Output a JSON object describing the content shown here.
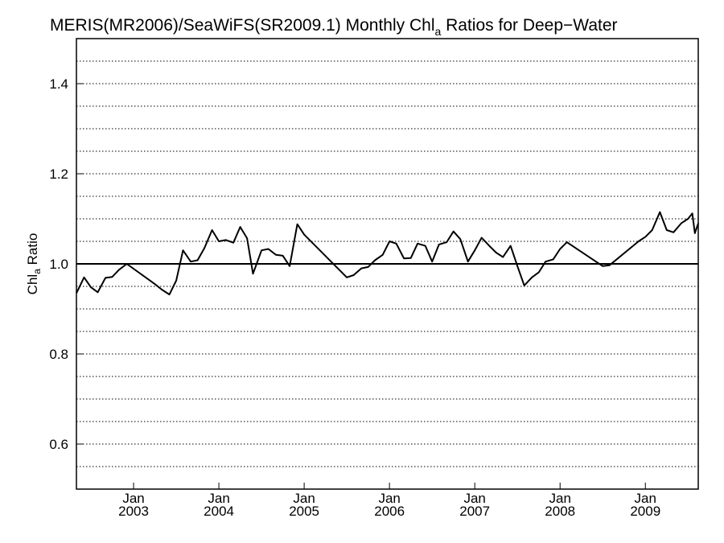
{
  "chart_data": {
    "type": "line",
    "title": {
      "prefix": "MERIS(MR2006)/SeaWiFS(SR2009.1) Monthly Chl",
      "subscript": "a",
      "suffix": " Ratios for Deep−Water"
    },
    "ylabel": {
      "main": "Chl",
      "subscript": "a",
      "suffix": " Ratio"
    },
    "xlim": [
      2002.33,
      2009.62
    ],
    "ylim": [
      0.5,
      1.5
    ],
    "y_ticks": [
      {
        "value": 0.6,
        "label": "0.6"
      },
      {
        "value": 0.8,
        "label": "0.8"
      },
      {
        "value": 1.0,
        "label": "1.0"
      },
      {
        "value": 1.2,
        "label": "1.2"
      },
      {
        "value": 1.4,
        "label": "1.4"
      }
    ],
    "y_gridlines": [
      0.55,
      0.6,
      0.65,
      0.7,
      0.75,
      0.8,
      0.85,
      0.9,
      0.95,
      1.05,
      1.1,
      1.15,
      1.2,
      1.25,
      1.3,
      1.35,
      1.4,
      1.45
    ],
    "grid": "dotted horizontal",
    "reference_line": 1.0,
    "x_ticks": [
      {
        "value": 2003.0,
        "month": "Jan",
        "year": "2003"
      },
      {
        "value": 2004.0,
        "month": "Jan",
        "year": "2004"
      },
      {
        "value": 2005.0,
        "month": "Jan",
        "year": "2005"
      },
      {
        "value": 2006.0,
        "month": "Jan",
        "year": "2006"
      },
      {
        "value": 2007.0,
        "month": "Jan",
        "year": "2007"
      },
      {
        "value": 2008.0,
        "month": "Jan",
        "year": "2008"
      },
      {
        "value": 2009.0,
        "month": "Jan",
        "year": "2009"
      }
    ],
    "series": [
      {
        "color": "#000000",
        "points": [
          [
            2002.33,
            0.935
          ],
          [
            2002.42,
            0.97
          ],
          [
            2002.5,
            0.948
          ],
          [
            2002.58,
            0.937
          ],
          [
            2002.67,
            0.969
          ],
          [
            2002.75,
            0.971
          ],
          [
            2002.83,
            0.987
          ],
          [
            2002.92,
            1.0
          ],
          [
            2003.25,
            0.955
          ],
          [
            2003.33,
            0.943
          ],
          [
            2003.42,
            0.932
          ],
          [
            2003.5,
            0.963
          ],
          [
            2003.58,
            1.03
          ],
          [
            2003.67,
            1.005
          ],
          [
            2003.75,
            1.008
          ],
          [
            2003.83,
            1.035
          ],
          [
            2003.92,
            1.075
          ],
          [
            2004.0,
            1.05
          ],
          [
            2004.08,
            1.053
          ],
          [
            2004.17,
            1.047
          ],
          [
            2004.25,
            1.082
          ],
          [
            2004.33,
            1.057
          ],
          [
            2004.4,
            0.978
          ],
          [
            2004.5,
            1.03
          ],
          [
            2004.58,
            1.033
          ],
          [
            2004.67,
            1.02
          ],
          [
            2004.75,
            1.018
          ],
          [
            2004.83,
            0.995
          ],
          [
            2004.92,
            1.088
          ],
          [
            2005.0,
            1.065
          ],
          [
            2005.5,
            0.97
          ],
          [
            2005.58,
            0.975
          ],
          [
            2005.67,
            0.99
          ],
          [
            2005.75,
            0.993
          ],
          [
            2005.83,
            1.008
          ],
          [
            2005.92,
            1.02
          ],
          [
            2006.0,
            1.05
          ],
          [
            2006.08,
            1.045
          ],
          [
            2006.17,
            1.012
          ],
          [
            2006.25,
            1.013
          ],
          [
            2006.33,
            1.045
          ],
          [
            2006.42,
            1.04
          ],
          [
            2006.5,
            1.005
          ],
          [
            2006.58,
            1.043
          ],
          [
            2006.67,
            1.048
          ],
          [
            2006.75,
            1.072
          ],
          [
            2006.83,
            1.055
          ],
          [
            2006.92,
            1.005
          ],
          [
            2007.0,
            1.03
          ],
          [
            2007.08,
            1.058
          ],
          [
            2007.17,
            1.04
          ],
          [
            2007.25,
            1.025
          ],
          [
            2007.33,
            1.015
          ],
          [
            2007.42,
            1.04
          ],
          [
            2007.5,
            0.995
          ],
          [
            2007.58,
            0.952
          ],
          [
            2007.67,
            0.97
          ],
          [
            2007.75,
            0.981
          ],
          [
            2007.83,
            1.005
          ],
          [
            2007.92,
            1.01
          ],
          [
            2008.0,
            1.033
          ],
          [
            2008.08,
            1.048
          ],
          [
            2008.5,
            0.995
          ],
          [
            2008.58,
            0.997
          ],
          [
            2008.92,
            1.05
          ],
          [
            2009.0,
            1.06
          ],
          [
            2009.08,
            1.075
          ],
          [
            2009.17,
            1.115
          ],
          [
            2009.25,
            1.075
          ],
          [
            2009.33,
            1.07
          ],
          [
            2009.42,
            1.09
          ],
          [
            2009.5,
            1.1
          ],
          [
            2009.55,
            1.112
          ],
          [
            2009.58,
            1.068
          ],
          [
            2009.62,
            1.09
          ]
        ]
      }
    ]
  }
}
